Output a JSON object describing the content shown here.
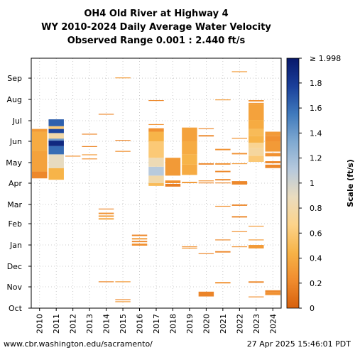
{
  "title_lines": [
    "OH4 Old River at Highway 4",
    "WY 2010-2024 Daily Average Water Velocity",
    "Observed Range 0.001 : 2.440 ft/s"
  ],
  "footer": {
    "url": "www.cbr.washington.edu/sacramento/",
    "timestamp": "27 Apr 2025 15:46:01 PDT"
  },
  "chart_data": {
    "type": "heatmap",
    "title": "OH4 Old River at Highway 4 WY 2010-2024 Daily Average Water Velocity Observed Range 0.001 : 2.440 ft/s",
    "x_categories": [
      "2010",
      "2011",
      "2012",
      "2013",
      "2014",
      "2015",
      "2016",
      "2017",
      "2018",
      "2019",
      "2020",
      "2021",
      "2022",
      "2023",
      "2024"
    ],
    "y_month_ticks": [
      "Oct",
      "Nov",
      "Dec",
      "Jan",
      "Feb",
      "Mar",
      "Apr",
      "May",
      "Jun",
      "Jul",
      "Aug",
      "Sep"
    ],
    "y_unit": "day of water year",
    "y_range": [
      1,
      365
    ],
    "grid": true,
    "colorbar": {
      "label": "Scale (ft/s)",
      "range": [
        0,
        1.998
      ],
      "ticks": [
        0,
        0.2,
        0.4,
        0.6,
        0.8,
        1,
        1.2,
        1.4,
        1.6,
        1.8,
        1.998
      ],
      "tick_labels": [
        "0",
        "0.2",
        "0.4",
        "0.6",
        "0.8",
        "1",
        "1.2",
        "1.4",
        "1.6",
        "1.8",
        "≥ 1.998"
      ],
      "colors": [
        "#d6600d",
        "#f08c2e",
        "#f7b347",
        "#fcd38a",
        "#eadcbe",
        "#b6c9dd",
        "#7fa9d1",
        "#3f79bc",
        "#1a3f9a",
        "#08186b"
      ]
    },
    "series": [
      {
        "year": "2010",
        "bands": [
          [
            190,
            200,
            0.2
          ],
          [
            200,
            230,
            0.35
          ],
          [
            230,
            258,
            0.4
          ],
          [
            258,
            262,
            0.3
          ]
        ]
      },
      {
        "year": "2011",
        "bands": [
          [
            188,
            205,
            0.45
          ],
          [
            205,
            225,
            0.9
          ],
          [
            225,
            237,
            1.6
          ],
          [
            237,
            245,
            1.9
          ],
          [
            245,
            248,
            1.4
          ],
          [
            248,
            250,
            0.7
          ],
          [
            250,
            256,
            0.8
          ],
          [
            256,
            262,
            1.75
          ],
          [
            262,
            266,
            0.6
          ],
          [
            266,
            276,
            1.65
          ]
        ]
      },
      {
        "year": "2012",
        "bands": [
          [
            222,
            223,
            0.25
          ]
        ]
      },
      {
        "year": "2013",
        "bands": [
          [
            218,
            219,
            0.25
          ],
          [
            224,
            225,
            0.3
          ],
          [
            236,
            237,
            0.2
          ],
          [
            254,
            255,
            0.2
          ]
        ]
      },
      {
        "year": "2014",
        "bands": [
          [
            39,
            40,
            0.2
          ],
          [
            130,
            132,
            0.35
          ],
          [
            134,
            136,
            0.3
          ],
          [
            138,
            140,
            0.25
          ],
          [
            145,
            146,
            0.2
          ],
          [
            283,
            284,
            0.2
          ]
        ]
      },
      {
        "year": "2015",
        "bands": [
          [
            10,
            11,
            0.3
          ],
          [
            13,
            14,
            0.2
          ],
          [
            39,
            40,
            0.3
          ],
          [
            229,
            230,
            0.25
          ],
          [
            245,
            246,
            0.2
          ],
          [
            336,
            337,
            0.3
          ]
        ]
      },
      {
        "year": "2016",
        "bands": [
          [
            92,
            95,
            0.25
          ],
          [
            97,
            99,
            0.2
          ],
          [
            101,
            103,
            0.3
          ],
          [
            106,
            108,
            0.2
          ]
        ]
      },
      {
        "year": "2017",
        "bands": [
          [
            179,
            183,
            0.5
          ],
          [
            183,
            194,
            0.8
          ],
          [
            194,
            207,
            1.1
          ],
          [
            207,
            220,
            0.85
          ],
          [
            220,
            244,
            0.6
          ],
          [
            244,
            258,
            0.45
          ],
          [
            258,
            263,
            0.25
          ],
          [
            268,
            269,
            0.25
          ],
          [
            303,
            304,
            0.2
          ]
        ]
      },
      {
        "year": "2018",
        "bands": [
          [
            178,
            182,
            0.15
          ],
          [
            183,
            187,
            0.25
          ],
          [
            194,
            220,
            0.3
          ]
        ]
      },
      {
        "year": "2019",
        "bands": [
          [
            88,
            89,
            0.3
          ],
          [
            90,
            91,
            0.25
          ],
          [
            183,
            185,
            0.3
          ],
          [
            195,
            210,
            0.4
          ],
          [
            210,
            225,
            0.45
          ],
          [
            225,
            244,
            0.4
          ],
          [
            244,
            264,
            0.35
          ]
        ]
      },
      {
        "year": "2020",
        "bands": [
          [
            18,
            25,
            0.18
          ],
          [
            80,
            81,
            0.2
          ],
          [
            183,
            184,
            0.2
          ],
          [
            186,
            187,
            0.25
          ],
          [
            210,
            212,
            0.2
          ],
          [
            251,
            253,
            0.2
          ],
          [
            262,
            263,
            0.2
          ]
        ]
      },
      {
        "year": "2021",
        "bands": [
          [
            37,
            39,
            0.25
          ],
          [
            82,
            84,
            0.2
          ],
          [
            100,
            101,
            0.2
          ],
          [
            149,
            150,
            0.25
          ],
          [
            183,
            184,
            0.2
          ],
          [
            187,
            189,
            0.2
          ],
          [
            199,
            201,
            0.2
          ],
          [
            210,
            212,
            0.25
          ],
          [
            231,
            233,
            0.25
          ],
          [
            304,
            305,
            0.3
          ]
        ]
      },
      {
        "year": "2022",
        "bands": [
          [
            90,
            91,
            0.25
          ],
          [
            112,
            113,
            0.25
          ],
          [
            133,
            135,
            0.2
          ],
          [
            150,
            152,
            0.2
          ],
          [
            181,
            185,
            0.2
          ],
          [
            184,
            186,
            0.2
          ],
          [
            211,
            212,
            0.3
          ],
          [
            225,
            227,
            0.25
          ],
          [
            248,
            249,
            0.25
          ],
          [
            345,
            346,
            0.3
          ]
        ]
      },
      {
        "year": "2023",
        "bands": [
          [
            17,
            18,
            0.25
          ],
          [
            38,
            40,
            0.2
          ],
          [
            88,
            93,
            0.3
          ],
          [
            100,
            101,
            0.3
          ],
          [
            120,
            121,
            0.3
          ],
          [
            214,
            223,
            0.6
          ],
          [
            223,
            234,
            0.75
          ],
          [
            234,
            242,
            0.7
          ],
          [
            242,
            252,
            0.45
          ],
          [
            252,
            262,
            0.5
          ],
          [
            262,
            275,
            0.4
          ],
          [
            275,
            298,
            0.35
          ],
          [
            298,
            300,
            0.3
          ],
          [
            302,
            304,
            0.25
          ]
        ]
      },
      {
        "year": "2024",
        "bands": [
          [
            20,
            24,
            0.25
          ],
          [
            24,
            27,
            0.2
          ],
          [
            205,
            210,
            0.2
          ],
          [
            212,
            215,
            0.2
          ],
          [
            222,
            227,
            0.25
          ],
          [
            229,
            244,
            0.3
          ],
          [
            244,
            252,
            0.25
          ],
          [
            252,
            258,
            0.3
          ]
        ]
      }
    ]
  }
}
